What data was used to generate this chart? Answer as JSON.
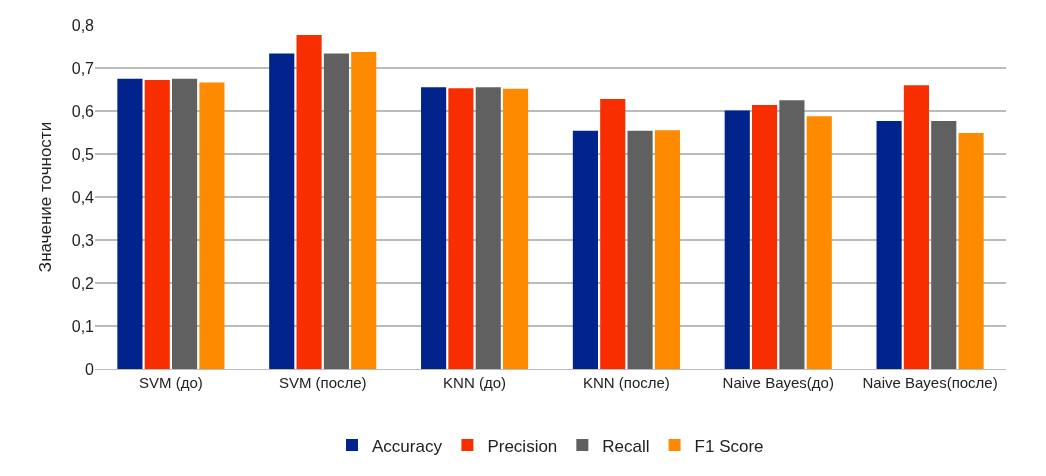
{
  "chart_data": {
    "type": "bar",
    "ylabel": "Значение точности",
    "categories": [
      "SVM (до)",
      "SVM (после)",
      "KNN (до)",
      "KNN (после)",
      "Naive Bayes(до)",
      "Naive Bayes(после)"
    ],
    "series": [
      {
        "name": "Accuracy",
        "color": "#00238c",
        "values": [
          0.675,
          0.734,
          0.655,
          0.554,
          0.601,
          0.577
        ]
      },
      {
        "name": "Precision",
        "color": "#f92e00",
        "values": [
          0.672,
          0.777,
          0.653,
          0.628,
          0.614,
          0.66
        ]
      },
      {
        "name": "Recall",
        "color": "#606060",
        "values": [
          0.675,
          0.734,
          0.655,
          0.554,
          0.625,
          0.577
        ]
      },
      {
        "name": "F1 Score",
        "color": "#fe8a00",
        "values": [
          0.666,
          0.737,
          0.652,
          0.555,
          0.588,
          0.549
        ]
      }
    ],
    "ylim": [
      0,
      0.8
    ],
    "yticks": [
      {
        "value": 0,
        "label": "0"
      },
      {
        "value": 0.1,
        "label": "0,1"
      },
      {
        "value": 0.2,
        "label": "0,2"
      },
      {
        "value": 0.3,
        "label": "0,3"
      },
      {
        "value": 0.4,
        "label": "0,4"
      },
      {
        "value": 0.5,
        "label": "0,5"
      },
      {
        "value": 0.6,
        "label": "0,6"
      },
      {
        "value": 0.7,
        "label": "0,7"
      },
      {
        "value": 0.8,
        "label": "0,8"
      }
    ],
    "grid": "y",
    "legend": "bottom"
  }
}
